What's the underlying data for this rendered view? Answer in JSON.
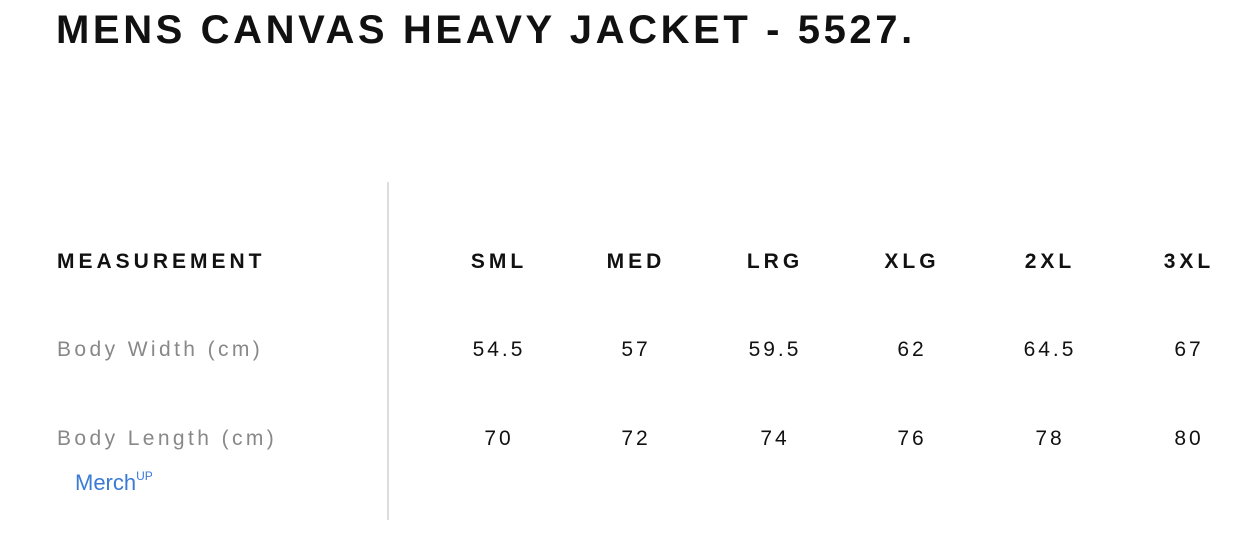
{
  "title": "MENS CANVAS HEAVY JACKET - 5527.",
  "table": {
    "header_label": "MEASUREMENT",
    "sizes": [
      "SML",
      "MED",
      "LRG",
      "XLG",
      "2XL",
      "3XL"
    ],
    "rows": [
      {
        "label": "Body Width (cm)",
        "values": [
          "54.5",
          "57",
          "59.5",
          "62",
          "64.5",
          "67"
        ]
      },
      {
        "label": "Body Length (cm)",
        "values": [
          "70",
          "72",
          "74",
          "76",
          "78",
          "80"
        ]
      }
    ]
  },
  "watermark": {
    "text": "Merch",
    "suffix": "UP"
  },
  "colors": {
    "watermark": "#3a7bd5",
    "label": "#888888",
    "text": "#111111"
  }
}
